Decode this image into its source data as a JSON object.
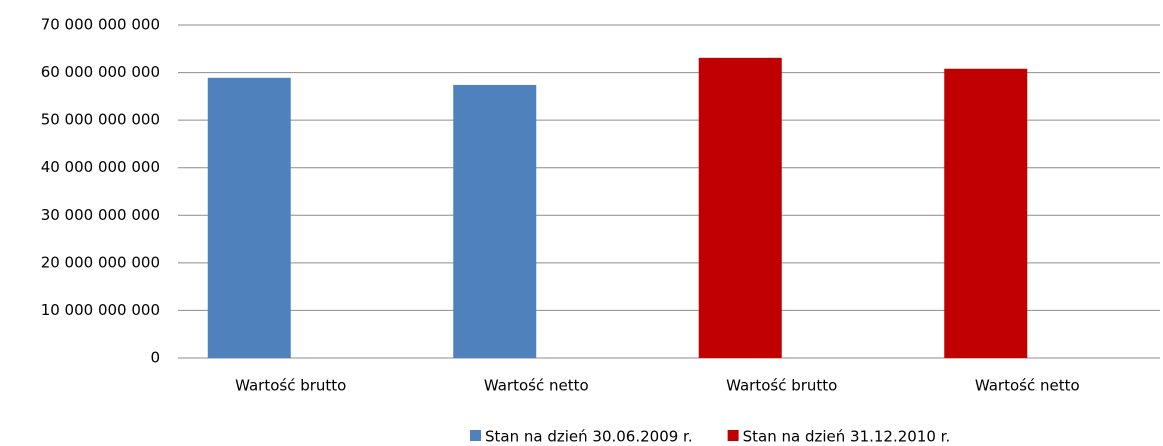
{
  "chart_data": {
    "type": "bar",
    "categories": [
      "Wartość brutto",
      "Wartość netto",
      "Wartość brutto",
      "Wartość netto"
    ],
    "series": [
      {
        "name": "Stan na dzień 30.06.2009 r.",
        "color": "#4f81bd",
        "values": [
          58900000000,
          57400000000,
          null,
          null
        ]
      },
      {
        "name": "Stan na dzień 31.12.2010 r.",
        "color": "#c00000",
        "values": [
          null,
          null,
          63100000000,
          60800000000
        ]
      }
    ],
    "ylim": [
      0,
      70000000000
    ],
    "yticks": [
      0,
      {
        "value": 10000000000,
        "label": "10 000 000 000"
      },
      {
        "value": 20000000000,
        "label": "20 000 000 000"
      },
      {
        "value": 30000000000,
        "label": "30 000 000 000"
      },
      {
        "value": 40000000000,
        "label": "40 000 000 000"
      },
      {
        "value": 50000000000,
        "label": "50 000 000 000"
      },
      {
        "value": 60000000000,
        "label": "60 000 000 000"
      },
      {
        "value": 70000000000,
        "label": "70 000 000 000"
      }
    ],
    "grid": true,
    "legend": "bottom"
  }
}
